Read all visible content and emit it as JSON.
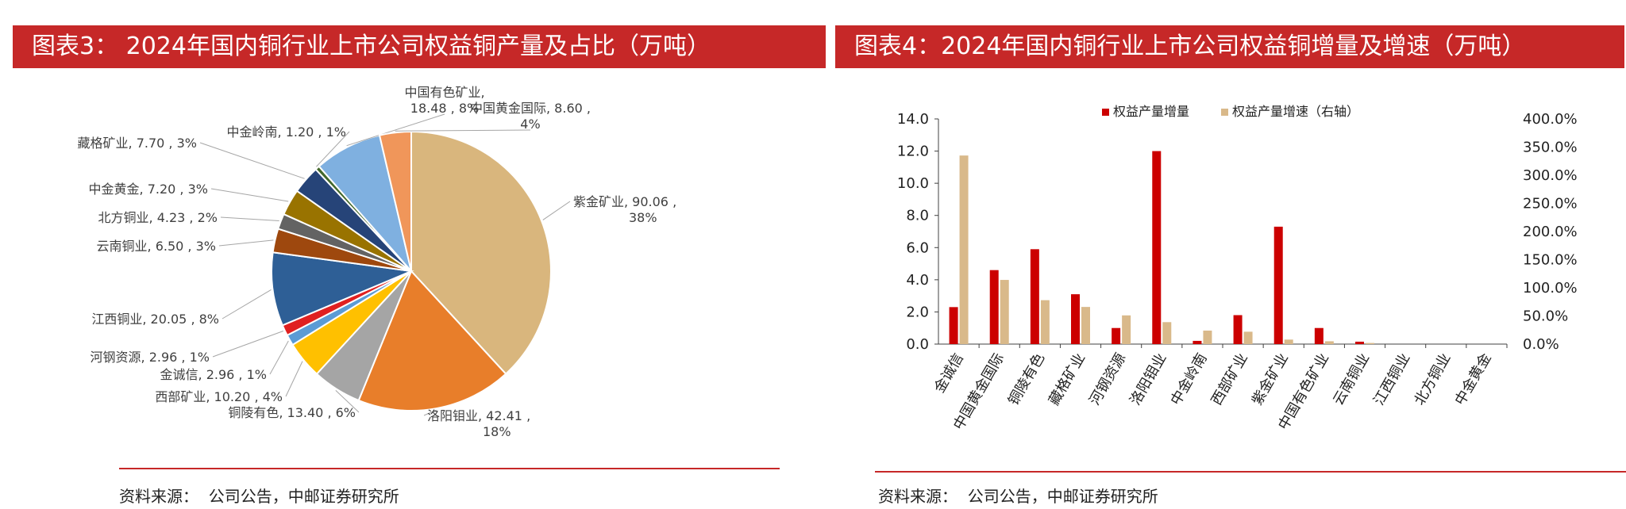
{
  "left_title": "图表3：  2024年国内铜行业上市公司权益铜产量及占比（万吨）",
  "right_title": "图表4：2024年国内铜行业上市公司权益铜增量及增速（万吨）",
  "source_label": "资料来源：",
  "source_text": "公司公告，中邮证券研究所",
  "colors": {
    "title_bg": "#c62828",
    "bar_increase": "#cc0000",
    "bar_rate": "#d9b98a"
  },
  "chart_data": [
    {
      "type": "pie",
      "title": "2024年国内铜行业上市公司权益铜产量及占比（万吨）",
      "slices": [
        {
          "name": "紫金矿业",
          "value": 90.06,
          "pct": "38%",
          "color": "#d9b67d",
          "label_line1": "紫金矿业, 90.06 ,",
          "label_line2": "38%"
        },
        {
          "name": "洛阳钼业",
          "value": 42.41,
          "pct": "18%",
          "color": "#e87e2a",
          "label_line1": "洛阳钼业, 42.41 ,",
          "label_line2": "18%"
        },
        {
          "name": "铜陵有色",
          "value": 13.4,
          "pct": "6%",
          "color": "#a5a5a5",
          "label_line1": "铜陵有色, 13.40 , 6%",
          "label_line2": ""
        },
        {
          "name": "西部矿业",
          "value": 10.2,
          "pct": "4%",
          "color": "#ffc000",
          "label_line1": "西部矿业, 10.20 , 4%",
          "label_line2": ""
        },
        {
          "name": "金诚信",
          "value": 2.96,
          "pct": "1%",
          "color": "#5b9bd5",
          "label_line1": "金诚信, 2.96 , 1%",
          "label_line2": ""
        },
        {
          "name": "河钢资源",
          "value": 2.96,
          "pct": "1%",
          "color": "#e02020",
          "label_line1": "河钢资源, 2.96 , 1%",
          "label_line2": ""
        },
        {
          "name": "江西铜业",
          "value": 20.05,
          "pct": "8%",
          "color": "#2e5f96",
          "label_line1": "江西铜业, 20.05 , 8%",
          "label_line2": ""
        },
        {
          "name": "云南铜业",
          "value": 6.5,
          "pct": "3%",
          "color": "#9e480e",
          "label_line1": "云南铜业, 6.50 , 3%",
          "label_line2": ""
        },
        {
          "name": "北方铜业",
          "value": 4.23,
          "pct": "2%",
          "color": "#636363",
          "label_line1": "北方铜业, 4.23 , 2%",
          "label_line2": ""
        },
        {
          "name": "中金黄金",
          "value": 7.2,
          "pct": "3%",
          "color": "#997300",
          "label_line1": "中金黄金, 7.20 , 3%",
          "label_line2": ""
        },
        {
          "name": "藏格矿业",
          "value": 7.7,
          "pct": "3%",
          "color": "#264478",
          "label_line1": "藏格矿业, 7.70 , 3%",
          "label_line2": ""
        },
        {
          "name": "中金岭南",
          "value": 1.2,
          "pct": "1%",
          "color": "#43682b",
          "label_line1": "中金岭南, 1.20 , 1%",
          "label_line2": ""
        },
        {
          "name": "中国有色矿业",
          "value": 18.48,
          "pct": "8%",
          "color": "#7fb0e0",
          "label_line1": "中国有色矿业,",
          "label_line2": "18.48 , 8%"
        },
        {
          "name": "中国黄金国际",
          "value": 8.6,
          "pct": "4%",
          "color": "#f0965a",
          "label_line1": "中国黄金国际, 8.60 ,",
          "label_line2": "4%"
        }
      ]
    },
    {
      "type": "bar",
      "title": "2024年国内铜行业上市公司权益铜增量及增速（万吨）",
      "categories": [
        "金诚信",
        "中国黄金国际",
        "铜陵有色",
        "藏格矿业",
        "河钢资源",
        "洛阳钼业",
        "中金岭南",
        "西部矿业",
        "紫金矿业",
        "中国有色矿业",
        "云南铜业",
        "江西铜业",
        "北方铜业",
        "中金黄金"
      ],
      "series": [
        {
          "name": "权益产量增量",
          "axis": "left",
          "values": [
            2.3,
            4.6,
            5.9,
            3.1,
            1.0,
            12.0,
            0.2,
            1.8,
            7.3,
            1.0,
            0.15,
            0,
            0,
            0
          ]
        },
        {
          "name": "权益产量增速（右轴）",
          "axis": "right",
          "values": [
            335,
            114,
            78,
            66,
            51,
            39,
            24,
            22,
            8,
            5,
            2,
            0,
            0,
            0
          ]
        }
      ],
      "ylim": [
        0,
        14
      ],
      "yticks": [
        "0.0",
        "2.0",
        "4.0",
        "6.0",
        "8.0",
        "10.0",
        "12.0",
        "14.0"
      ],
      "y2lim": [
        0,
        400
      ],
      "y2ticks": [
        "0.0%",
        "50.0%",
        "100.0%",
        "150.0%",
        "200.0%",
        "250.0%",
        "300.0%",
        "350.0%",
        "400.0%"
      ],
      "legend_position": "top-center"
    }
  ]
}
